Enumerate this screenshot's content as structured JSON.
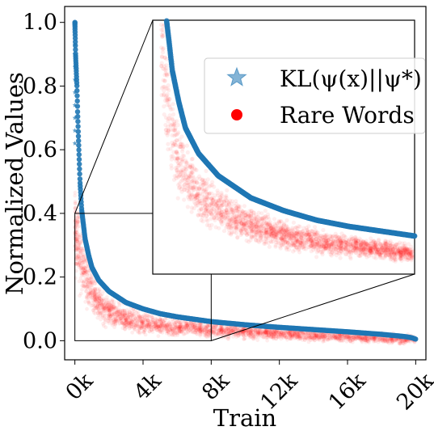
{
  "chart_data": {
    "type": "scatter",
    "xlabel": "Train",
    "ylabel": "Normalized Values",
    "xlim": [
      -600,
      20600
    ],
    "ylim": [
      -0.06,
      1.05
    ],
    "x_ticks": [
      0,
      4000,
      8000,
      12000,
      16000,
      20000
    ],
    "x_tick_labels": [
      "0k",
      "4k",
      "8k",
      "12k",
      "16k",
      "20k"
    ],
    "y_ticks": [
      0.0,
      0.2,
      0.4,
      0.6,
      0.8,
      1.0
    ],
    "y_tick_labels": [
      "0.0",
      "0.2",
      "0.4",
      "0.6",
      "0.8",
      "1.0"
    ],
    "grid": false,
    "legend_position": "top-right",
    "series": [
      {
        "name": "KL(ψ(x)||ψ*)",
        "marker": "star",
        "color": "#1f77b4",
        "x": [
          0,
          40,
          80,
          120,
          160,
          200,
          300,
          400,
          600,
          800,
          1000,
          1400,
          2000,
          3000,
          4000,
          5000,
          6000,
          8000,
          10000,
          12000,
          14000,
          16000,
          18000,
          19000,
          19500,
          19800,
          20000
        ],
        "y": [
          1.0,
          0.9,
          0.85,
          0.8,
          0.72,
          0.65,
          0.5,
          0.41,
          0.32,
          0.27,
          0.23,
          0.19,
          0.155,
          0.12,
          0.1,
          0.085,
          0.075,
          0.06,
          0.05,
          0.042,
          0.035,
          0.028,
          0.02,
          0.015,
          0.012,
          0.009,
          0.005
        ]
      },
      {
        "name": "Rare Words",
        "marker": "circle",
        "color": "#ff0000",
        "x": [
          0,
          200,
          400,
          800,
          1200,
          2000,
          3000,
          4000,
          6000,
          8000,
          10000,
          12000,
          14000,
          16000,
          18000,
          20000
        ],
        "y": [
          0.35,
          0.3,
          0.25,
          0.18,
          0.13,
          0.09,
          0.07,
          0.055,
          0.045,
          0.035,
          0.028,
          0.022,
          0.017,
          0.012,
          0.008,
          0.003
        ]
      }
    ],
    "inset": {
      "zoom_x_range": [
        0,
        8000
      ],
      "zoom_y_range": [
        0,
        0.4
      ]
    }
  },
  "colors": {
    "kl_series": "#1f77b4",
    "rare_words": "#ff0000",
    "axis": "#000000"
  }
}
